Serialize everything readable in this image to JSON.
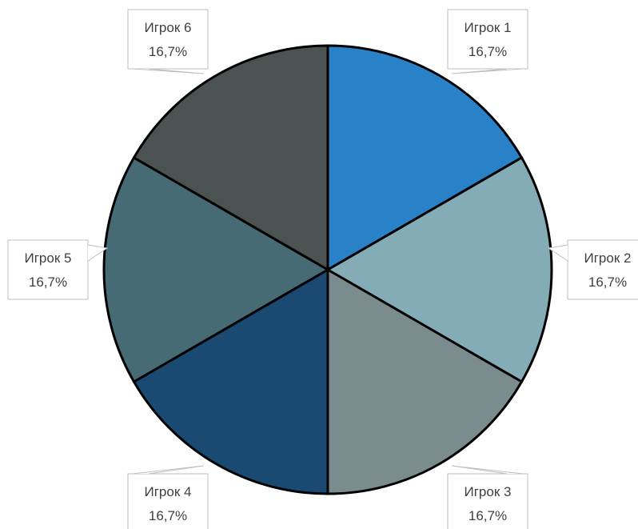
{
  "chart_data": {
    "type": "pie",
    "title": "",
    "categories": [
      "Игрок 1",
      "Игрок 2",
      "Игрок 3",
      "Игрок 4",
      "Игрок 5",
      "Игрок 6"
    ],
    "values": [
      16.7,
      16.7,
      16.7,
      16.7,
      16.7,
      16.7
    ],
    "value_labels": [
      "16,7%",
      "16,7%",
      "16,7%",
      "16,7%",
      "16,7%",
      "16,7%"
    ],
    "colors": [
      "#2981c8",
      "#84acb6",
      "#7a8c8e",
      "#1a4a72",
      "#466b74",
      "#4a5352"
    ],
    "start_angle_deg": 0,
    "direction": "clockwise",
    "legend": "none",
    "labels": "data callouts with category name and percentage"
  }
}
